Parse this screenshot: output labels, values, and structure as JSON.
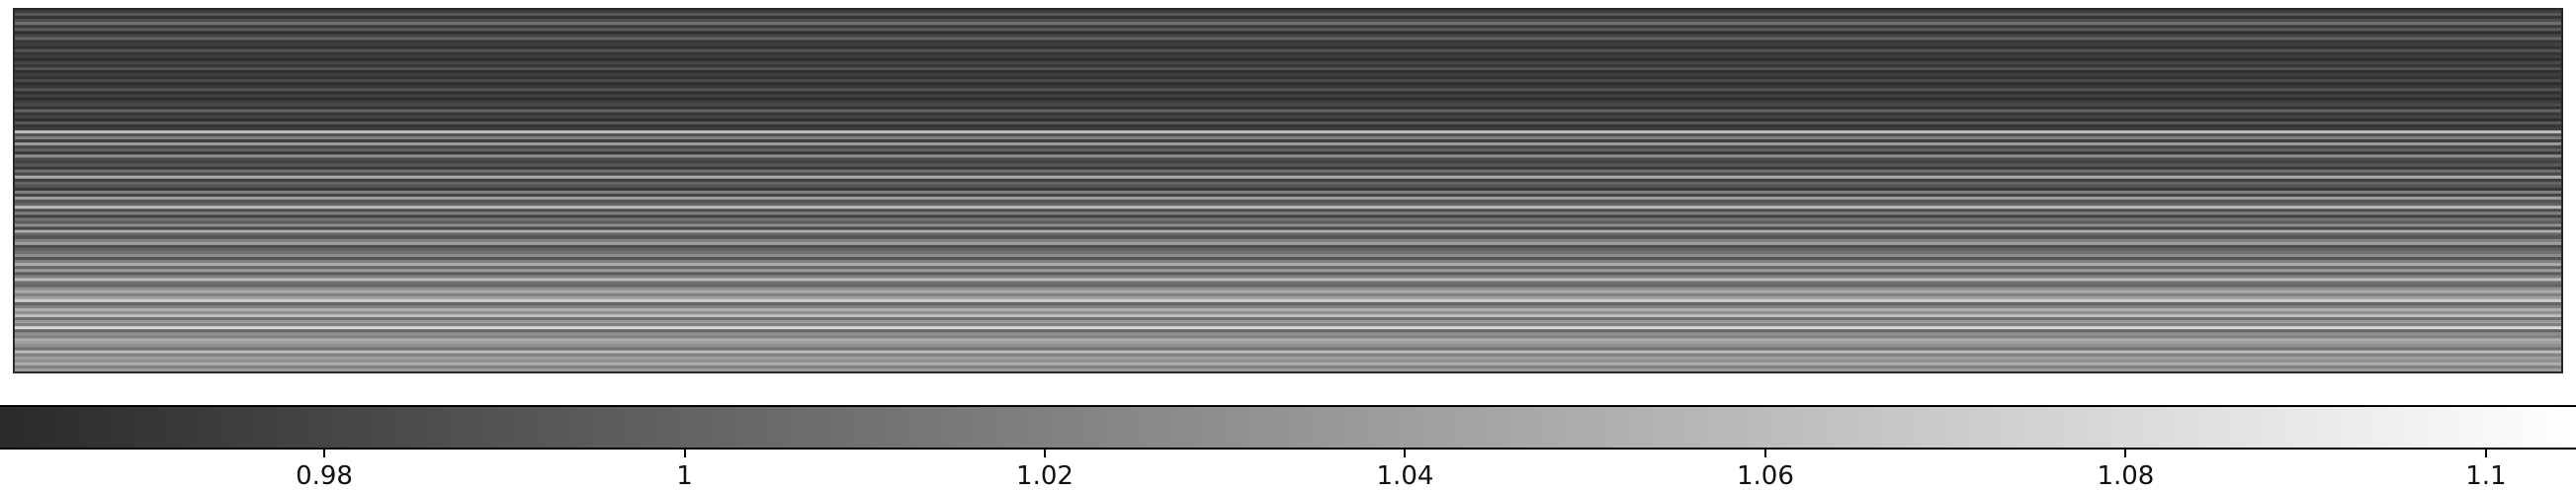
{
  "colorbar": {
    "min": 0.962,
    "max": 1.105,
    "colormap": "grayscale",
    "color_low": "#2a2a2a",
    "color_high": "#ffffff",
    "ticks": [
      {
        "value": 0.98,
        "label": "0.98"
      },
      {
        "value": 1.0,
        "label": "1"
      },
      {
        "value": 1.02,
        "label": "1.02"
      },
      {
        "value": 1.04,
        "label": "1.04"
      },
      {
        "value": 1.06,
        "label": "1.06"
      },
      {
        "value": 1.08,
        "label": "1.08"
      },
      {
        "value": 1.1,
        "label": "1.1"
      }
    ]
  },
  "image": {
    "orientation": "horizontal stripes",
    "row_count": 120,
    "row_values": [
      0.975,
      0.992,
      0.968,
      0.985,
      1.01,
      0.972,
      0.995,
      0.965,
      0.98,
      1.0,
      0.97,
      0.978,
      0.966,
      0.99,
      0.968,
      0.975,
      0.964,
      0.982,
      0.97,
      0.988,
      0.966,
      0.976,
      0.969,
      0.983,
      0.965,
      0.972,
      0.99,
      0.967,
      0.978,
      0.964,
      0.975,
      0.985,
      0.968,
      1.0,
      0.971,
      0.98,
      0.965,
      0.995,
      0.97,
      0.976,
      1.06,
      0.99,
      1.02,
      0.975,
      1.04,
      0.98,
      1.0,
      0.972,
      1.03,
      0.985,
      0.978,
      0.995,
      0.97,
      1.01,
      0.982,
      1.05,
      0.975,
      1.0,
      0.99,
      0.972,
      1.02,
      0.98,
      1.04,
      0.99,
      1.0,
      1.06,
      0.985,
      1.02,
      0.978,
      1.01,
      0.995,
      1.03,
      0.98,
      1.05,
      1.0,
      0.99,
      1.02,
      1.04,
      0.985,
      1.0,
      1.01,
      1.03,
      0.99,
      1.02,
      1.05,
      1.0,
      1.04,
      0.995,
      1.02,
      1.06,
      1.01,
      1.0,
      1.03,
      1.05,
      1.02,
      1.04,
      1.07,
      1.0,
      1.02,
      1.05,
      1.03,
      1.06,
      1.01,
      1.04,
      1.02,
      1.08,
      1.0,
      1.03,
      1.02,
      1.05,
      1.04,
      1.03,
      1.01,
      1.06,
      1.02,
      1.04,
      1.03,
      1.05,
      1.02,
      1.04
    ]
  }
}
